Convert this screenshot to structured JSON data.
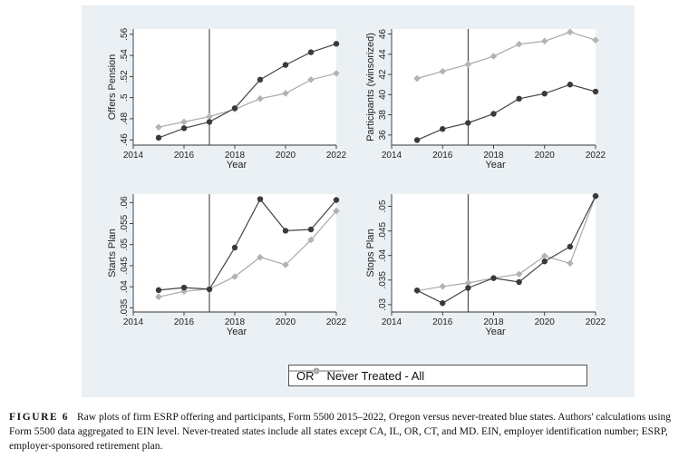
{
  "chart_data": [
    {
      "type": "line",
      "ylabel": "Offers Pension",
      "xlabel": "Year",
      "x": [
        2015,
        2016,
        2017,
        2018,
        2019,
        2020,
        2021,
        2022
      ],
      "xticks": [
        2014,
        2016,
        2018,
        2020,
        2022
      ],
      "xlim": [
        2014,
        2022
      ],
      "ylim": [
        0.455,
        0.565
      ],
      "yticks": [
        0.46,
        0.48,
        0.5,
        0.52,
        0.54,
        0.56
      ],
      "ytick_labels": [
        ".46",
        ".48",
        ".5",
        ".52",
        ".54",
        ".56"
      ],
      "treatment_year": 2017,
      "series": [
        {
          "name": "OR",
          "values": [
            0.462,
            0.471,
            0.477,
            0.49,
            0.517,
            0.531,
            0.543,
            0.551
          ]
        },
        {
          "name": "Never Treated - All",
          "values": [
            0.472,
            0.477,
            0.482,
            0.489,
            0.499,
            0.504,
            0.517,
            0.523
          ]
        }
      ]
    },
    {
      "type": "line",
      "ylabel": "Participants (winsorized)",
      "xlabel": "Year",
      "x": [
        2015,
        2016,
        2017,
        2018,
        2019,
        2020,
        2021,
        2022
      ],
      "xticks": [
        2014,
        2016,
        2018,
        2020,
        2022
      ],
      "xlim": [
        2014,
        2022
      ],
      "ylim": [
        35,
        46.5
      ],
      "yticks": [
        36,
        38,
        40,
        42,
        44,
        46
      ],
      "ytick_labels": [
        "36",
        "38",
        "40",
        "42",
        "44",
        "46"
      ],
      "treatment_year": 2017,
      "series": [
        {
          "name": "OR",
          "values": [
            35.5,
            36.6,
            37.2,
            38.1,
            39.6,
            40.1,
            41.0,
            40.3
          ]
        },
        {
          "name": "Never Treated - All",
          "values": [
            41.6,
            42.3,
            43.0,
            43.8,
            45.0,
            45.3,
            46.2,
            45.4
          ]
        }
      ]
    },
    {
      "type": "line",
      "ylabel": "Starts Plan",
      "xlabel": "Year",
      "x": [
        2015,
        2016,
        2017,
        2018,
        2019,
        2020,
        2021,
        2022
      ],
      "xticks": [
        2014,
        2016,
        2018,
        2020,
        2022
      ],
      "xlim": [
        2014,
        2022
      ],
      "ylim": [
        0.034,
        0.062
      ],
      "yticks": [
        0.035,
        0.04,
        0.045,
        0.05,
        0.055,
        0.06
      ],
      "ytick_labels": [
        ".035",
        ".04",
        ".045",
        ".05",
        ".055",
        ".06"
      ],
      "treatment_year": 2017,
      "series": [
        {
          "name": "OR",
          "values": [
            0.0392,
            0.0398,
            0.0394,
            0.0493,
            0.0608,
            0.0533,
            0.0536,
            0.0606
          ]
        },
        {
          "name": "Never Treated - All",
          "values": [
            0.0376,
            0.0389,
            0.0395,
            0.0424,
            0.047,
            0.0452,
            0.0511,
            0.058
          ]
        }
      ]
    },
    {
      "type": "line",
      "ylabel": "Stops Plan",
      "xlabel": "Year",
      "x": [
        2015,
        2016,
        2017,
        2018,
        2019,
        2020,
        2021,
        2022
      ],
      "xticks": [
        2014,
        2016,
        2018,
        2020,
        2022
      ],
      "xlim": [
        2014,
        2022
      ],
      "ylim": [
        0.0285,
        0.0525
      ],
      "yticks": [
        0.03,
        0.035,
        0.04,
        0.045,
        0.05
      ],
      "ytick_labels": [
        ".03",
        ".035",
        ".04",
        ".045",
        ".05"
      ],
      "treatment_year": 2017,
      "series": [
        {
          "name": "OR",
          "values": [
            0.0329,
            0.0303,
            0.0334,
            0.0354,
            0.0346,
            0.0388,
            0.0418,
            0.0521
          ]
        },
        {
          "name": "Never Treated - All",
          "values": [
            0.0328,
            0.0337,
            0.0344,
            0.0354,
            0.0362,
            0.0399,
            0.0384,
            0.0521
          ]
        }
      ]
    }
  ],
  "legend": {
    "or_label": "OR",
    "nt_label": "Never Treated - All"
  },
  "caption": {
    "label": "FIGURE 6",
    "text": "Raw plots of firm ESRP offering and participants, Form 5500 2015–2022, Oregon versus never-treated blue states. Authors' calculations using Form 5500 data aggregated to EIN level. Never-treated states include all states except CA, IL, OR, CT, and MD. EIN, employer identification number; ESRP, employer-sponsored retirement plan."
  }
}
